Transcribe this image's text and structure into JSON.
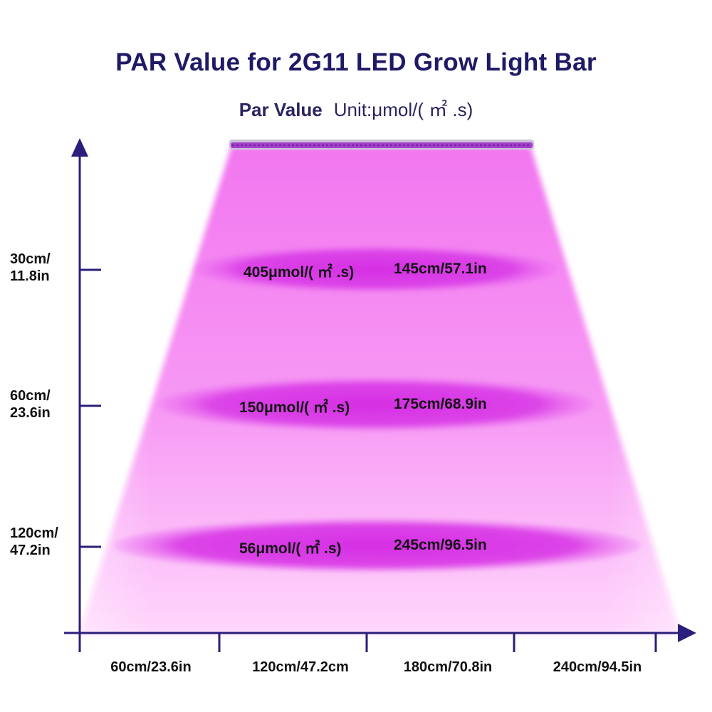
{
  "title": "PAR Value for 2G11 LED Grow Light Bar",
  "subtitle": {
    "label": "Par Value",
    "unit": "Unit:μmol/( ㎡ .s)"
  },
  "colors": {
    "title": "#1f1a66",
    "axis": "#2a1f7a",
    "beam_light": "#ffd0ff",
    "beam_dark": "#f070f0",
    "spot": "#d435e2",
    "bar": "#b04ad0"
  },
  "y_axis": {
    "ticks": [
      {
        "line1": "30cm/",
        "line2": "11.8in"
      },
      {
        "line1": "60cm/",
        "line2": "23.6in"
      },
      {
        "line1": "120cm/",
        "line2": "47.2in"
      }
    ]
  },
  "x_axis": {
    "ticks": [
      "60cm/23.6in",
      "120cm/47.2cm",
      "180cm/70.8in",
      "240cm/94.5in"
    ]
  },
  "zones": [
    {
      "par": "405μmol/( ㎡ .s)",
      "coverage": "145cm/57.1in"
    },
    {
      "par": "150μmol/( ㎡ .s)",
      "coverage": "175cm/68.9in"
    },
    {
      "par": "56μmol/( ㎡ .s)",
      "coverage": "245cm/96.5in"
    }
  ]
}
